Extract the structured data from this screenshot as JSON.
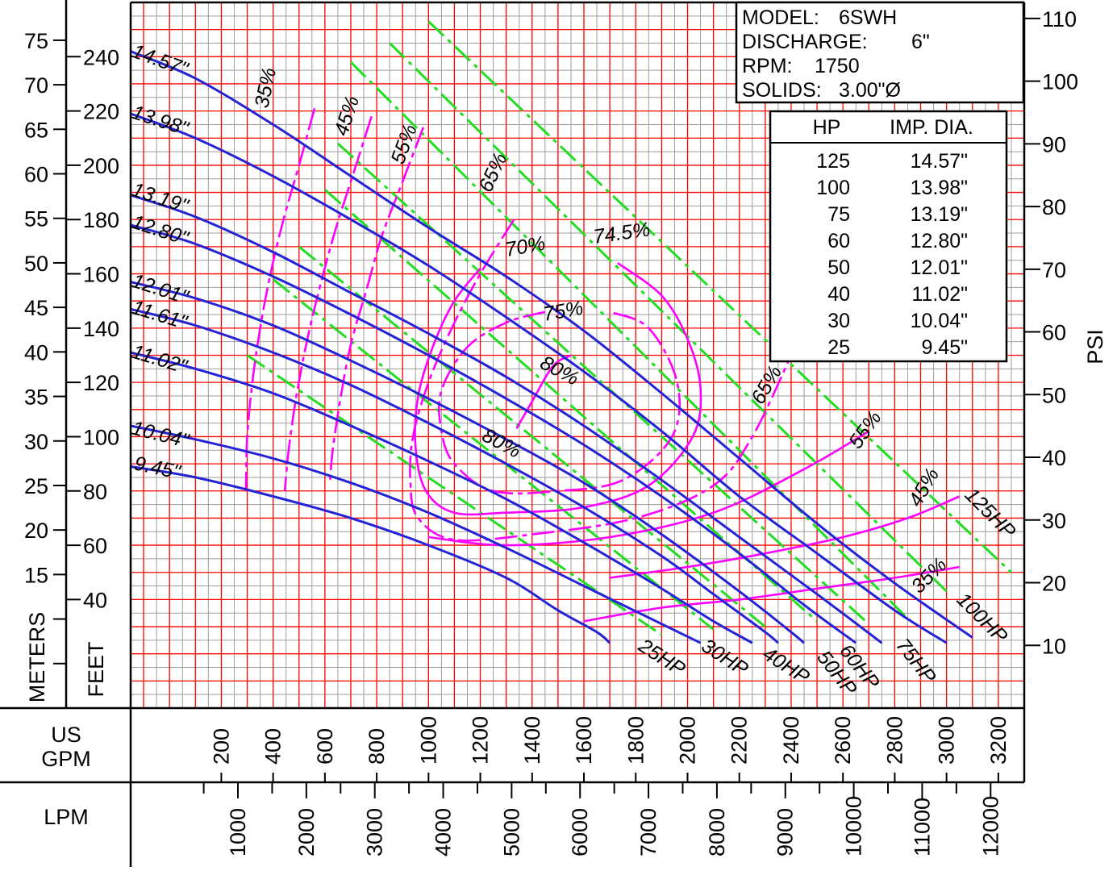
{
  "chart_data": {
    "type": "line",
    "title": "",
    "info_box": {
      "model_label": "MODEL:",
      "model": "6SWH",
      "discharge_label": "DISCHARGE:",
      "discharge": "6\"",
      "rpm_label": "RPM:",
      "rpm": "1750",
      "solids_label": "SOLIDS:",
      "solids": "3.00\"Ø"
    },
    "table": {
      "headers": [
        "HP",
        "IMP. DIA."
      ],
      "rows": [
        [
          "125",
          "14.57\""
        ],
        [
          "100",
          "13.98\""
        ],
        [
          "75",
          "13.19\""
        ],
        [
          "60",
          "12.80\""
        ],
        [
          "50",
          "12.01\""
        ],
        [
          "40",
          "11.02\""
        ],
        [
          "30",
          "10.04\""
        ],
        [
          "25",
          "9.45\""
        ]
      ]
    },
    "axes": {
      "x_gpm": {
        "label": [
          "US",
          "GPM"
        ],
        "range": [
          -150,
          3300
        ],
        "ticks": [
          "200",
          "400",
          "600",
          "800",
          "1000",
          "1200",
          "1400",
          "1600",
          "1800",
          "2000",
          "2200",
          "2400",
          "2600",
          "2800",
          "3000",
          "3200"
        ]
      },
      "x_lpm": {
        "label": "LPM",
        "ticks": [
          "1000",
          "2000",
          "3000",
          "4000",
          "5000",
          "6000",
          "7000",
          "8000",
          "9000",
          "10000",
          "11000",
          "12000"
        ]
      },
      "y_feet": {
        "label": "FEET",
        "range": [
          0,
          260
        ],
        "ticks": [
          "40",
          "60",
          "80",
          "100",
          "120",
          "140",
          "160",
          "180",
          "200",
          "220",
          "240"
        ]
      },
      "y_meters": {
        "label": "METERS",
        "ticks": [
          "15",
          "20",
          "25",
          "30",
          "35",
          "40",
          "45",
          "50",
          "55",
          "60",
          "65",
          "70",
          "75"
        ]
      },
      "y_psi": {
        "label": "PSI",
        "ticks": [
          "10",
          "20",
          "30",
          "40",
          "50",
          "60",
          "70",
          "80",
          "90",
          "100",
          "110"
        ]
      }
    },
    "grid": true,
    "series": [
      {
        "name": "14.57\"",
        "kind": "impeller",
        "points": [
          [
            -150,
            242
          ],
          [
            100,
            232
          ],
          [
            400,
            215
          ],
          [
            700,
            196
          ],
          [
            1000,
            177
          ],
          [
            1300,
            159
          ],
          [
            1600,
            139
          ],
          [
            1900,
            116
          ],
          [
            2200,
            92
          ],
          [
            2500,
            68
          ],
          [
            2800,
            46
          ],
          [
            3100,
            26
          ]
        ]
      },
      {
        "name": "13.98\"",
        "kind": "impeller",
        "points": [
          [
            -150,
            219
          ],
          [
            100,
            210
          ],
          [
            400,
            196
          ],
          [
            700,
            180
          ],
          [
            1000,
            163
          ],
          [
            1300,
            144
          ],
          [
            1600,
            124
          ],
          [
            1900,
            102
          ],
          [
            2200,
            78
          ],
          [
            2500,
            57
          ],
          [
            2800,
            36
          ],
          [
            3000,
            24
          ]
        ]
      },
      {
        "name": "13.19\"",
        "kind": "impeller",
        "points": [
          [
            -150,
            189
          ],
          [
            100,
            181
          ],
          [
            400,
            168
          ],
          [
            700,
            153
          ],
          [
            1000,
            138
          ],
          [
            1300,
            122
          ],
          [
            1600,
            104
          ],
          [
            1900,
            84
          ],
          [
            2200,
            63
          ],
          [
            2500,
            42
          ],
          [
            2750,
            24
          ]
        ]
      },
      {
        "name": "12.80\"",
        "kind": "impeller",
        "points": [
          [
            -150,
            178
          ],
          [
            100,
            171
          ],
          [
            400,
            159
          ],
          [
            700,
            145
          ],
          [
            1000,
            130
          ],
          [
            1300,
            114
          ],
          [
            1600,
            97
          ],
          [
            1900,
            78
          ],
          [
            2200,
            57
          ],
          [
            2450,
            38
          ],
          [
            2650,
            24
          ]
        ]
      },
      {
        "name": "12.01\"",
        "kind": "impeller",
        "points": [
          [
            -150,
            157
          ],
          [
            100,
            151
          ],
          [
            400,
            141
          ],
          [
            700,
            128
          ],
          [
            1000,
            114
          ],
          [
            1300,
            99
          ],
          [
            1600,
            83
          ],
          [
            1900,
            64
          ],
          [
            2200,
            43
          ],
          [
            2400,
            28
          ],
          [
            2450,
            24
          ]
        ]
      },
      {
        "name": "11.61\"",
        "kind": "impeller",
        "points": [
          [
            -150,
            147
          ],
          [
            100,
            141
          ],
          [
            400,
            131
          ],
          [
            700,
            119
          ],
          [
            1000,
            105
          ],
          [
            1300,
            90
          ],
          [
            1600,
            74
          ],
          [
            1900,
            56
          ],
          [
            2100,
            42
          ],
          [
            2300,
            28
          ],
          [
            2350,
            24
          ]
        ]
      },
      {
        "name": "11.02\"",
        "kind": "impeller",
        "points": [
          [
            -150,
            131
          ],
          [
            100,
            125
          ],
          [
            400,
            116
          ],
          [
            700,
            104
          ],
          [
            1000,
            91
          ],
          [
            1300,
            77
          ],
          [
            1600,
            61
          ],
          [
            1900,
            44
          ],
          [
            2100,
            32
          ],
          [
            2250,
            24
          ]
        ]
      },
      {
        "name": "10.04\"",
        "kind": "impeller",
        "points": [
          [
            -150,
            104
          ],
          [
            100,
            99
          ],
          [
            400,
            92
          ],
          [
            700,
            83
          ],
          [
            1000,
            72
          ],
          [
            1300,
            59
          ],
          [
            1600,
            45
          ],
          [
            1900,
            31
          ],
          [
            2050,
            24
          ]
        ]
      },
      {
        "name": "9.45\"",
        "kind": "impeller",
        "points": [
          [
            -150,
            89
          ],
          [
            100,
            85
          ],
          [
            400,
            78
          ],
          [
            700,
            70
          ],
          [
            1000,
            60
          ],
          [
            1300,
            48
          ],
          [
            1500,
            36
          ],
          [
            1650,
            28
          ],
          [
            1700,
            24
          ]
        ]
      }
    ],
    "efficiency_curves": [
      {
        "name": "35%",
        "points": [
          [
            560,
            221
          ],
          [
            500,
            200
          ],
          [
            440,
            180
          ],
          [
            390,
            160
          ],
          [
            350,
            140
          ],
          [
            320,
            120
          ],
          [
            300,
            100
          ],
          [
            295,
            80
          ]
        ]
      },
      {
        "name": "35%",
        "points": [
          [
            1600,
            32
          ],
          [
            1900,
            37
          ],
          [
            2200,
            40
          ],
          [
            2500,
            44
          ],
          [
            2800,
            48
          ],
          [
            3050,
            52
          ]
        ]
      },
      {
        "name": "45%",
        "points": [
          [
            780,
            218
          ],
          [
            710,
            197
          ],
          [
            640,
            176
          ],
          [
            580,
            155
          ],
          [
            530,
            135
          ],
          [
            490,
            115
          ],
          [
            460,
            95
          ],
          [
            445,
            80
          ]
        ]
      },
      {
        "name": "45%",
        "points": [
          [
            1700,
            48
          ],
          [
            2000,
            52
          ],
          [
            2300,
            57
          ],
          [
            2600,
            63
          ],
          [
            2850,
            70
          ],
          [
            3050,
            78
          ]
        ]
      },
      {
        "name": "55%",
        "points": [
          [
            980,
            214
          ],
          [
            900,
            194
          ],
          [
            820,
            174
          ],
          [
            760,
            154
          ],
          [
            700,
            134
          ],
          [
            660,
            114
          ],
          [
            630,
            95
          ],
          [
            620,
            84
          ]
        ]
      },
      {
        "name": "55%",
        "points": [
          [
            1000,
            63
          ],
          [
            1300,
            60
          ],
          [
            1700,
            63
          ],
          [
            2100,
            72
          ],
          [
            2450,
            88
          ],
          [
            2700,
            102
          ]
        ]
      },
      {
        "name": "65%",
        "points": [
          [
            1330,
            180
          ],
          [
            1200,
            160
          ],
          [
            1090,
            140
          ],
          [
            1000,
            120
          ],
          [
            940,
            100
          ],
          [
            930,
            83
          ],
          [
            960,
            70
          ],
          [
            1100,
            62
          ],
          [
            1400,
            64
          ],
          [
            1800,
            70
          ],
          [
            2100,
            82
          ],
          [
            2250,
            100
          ],
          [
            2400,
            130
          ]
        ]
      },
      {
        "name": "70%",
        "points": [
          [
            1200,
            162
          ],
          [
            1100,
            150
          ],
          [
            1020,
            134
          ],
          [
            960,
            115
          ],
          [
            950,
            96
          ],
          [
            990,
            80
          ],
          [
            1100,
            72
          ],
          [
            1300,
            72
          ],
          [
            1600,
            74
          ],
          [
            1850,
            82
          ],
          [
            2020,
            100
          ],
          [
            2050,
            118
          ],
          [
            2000,
            136
          ],
          [
            1900,
            152
          ],
          [
            1730,
            164
          ]
        ]
      },
      {
        "name": "75%",
        "points": [
          [
            1450,
            146
          ],
          [
            1300,
            142
          ],
          [
            1150,
            133
          ],
          [
            1050,
            117
          ],
          [
            1050,
            102
          ],
          [
            1100,
            90
          ],
          [
            1250,
            80
          ],
          [
            1500,
            80
          ],
          [
            1750,
            84
          ],
          [
            1940,
            100
          ],
          [
            1960,
            120
          ],
          [
            1850,
            140
          ],
          [
            1700,
            146
          ]
        ]
      },
      {
        "name": "80%",
        "points": [
          [
            1340,
            103
          ],
          [
            1400,
            113
          ],
          [
            1480,
            126
          ],
          [
            1550,
            130
          ]
        ]
      }
    ],
    "hp_lines": [
      {
        "name": "25HP",
        "points": [
          [
            300,
            130
          ],
          [
            1900,
            27
          ]
        ]
      },
      {
        "name": "30HP",
        "points": [
          [
            400,
            158
          ],
          [
            2100,
            29
          ]
        ]
      },
      {
        "name": "40HP",
        "points": [
          [
            500,
            170
          ],
          [
            2300,
            30
          ]
        ]
      },
      {
        "name": "50HP",
        "points": [
          [
            600,
            191
          ],
          [
            2500,
            32
          ]
        ]
      },
      {
        "name": "60HP",
        "points": [
          [
            650,
            208
          ],
          [
            2700,
            31
          ]
        ]
      },
      {
        "name": "75HP",
        "points": [
          [
            700,
            238
          ],
          [
            2850,
            33
          ]
        ]
      },
      {
        "name": "100HP",
        "points": [
          [
            850,
            245
          ],
          [
            3000,
            43
          ]
        ]
      },
      {
        "name": "125HP",
        "points": [
          [
            1000,
            253
          ],
          [
            3250,
            50
          ]
        ]
      }
    ],
    "labels": {
      "eff_values": [
        "35%",
        "45%",
        "55%",
        "65%",
        "70%",
        "74.5%",
        "75%",
        "80%"
      ],
      "hp_values": [
        "25HP",
        "30HP",
        "40HP",
        "50HP",
        "60HP",
        "75HP",
        "100HP",
        "125HP"
      ]
    },
    "colors": {
      "grid_major": "#ff0000",
      "grid_minor": "#9e9e9e",
      "impeller": "#2424d6",
      "efficiency": "#ff00ff",
      "hp": "#22dd22"
    }
  }
}
